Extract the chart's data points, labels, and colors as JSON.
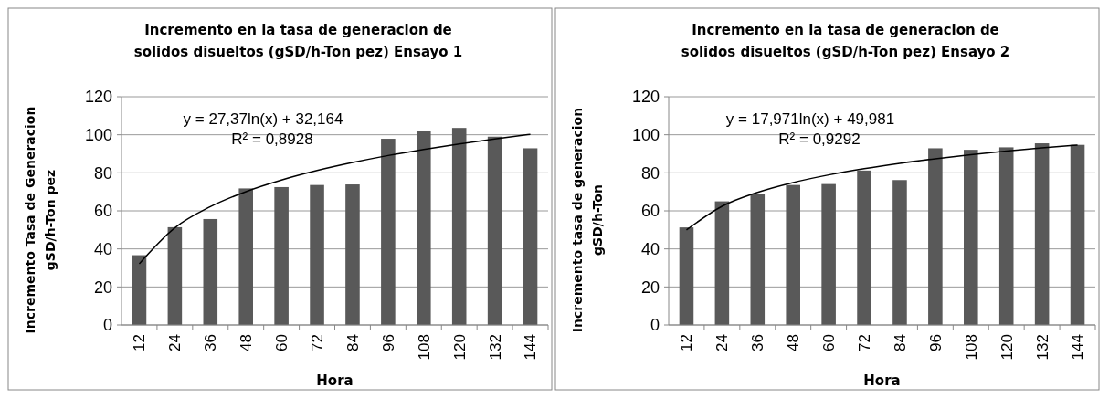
{
  "chart_data": [
    {
      "type": "bar",
      "title": "Incremento en la tasa de generacion de solidos disueltos (gSD/h-Ton pez) Ensayo 1",
      "xlabel": "Hora",
      "ylabel": "Incremento Tasa de Generacion gSD/h-Ton pez",
      "categories": [
        "12",
        "24",
        "36",
        "48",
        "60",
        "72",
        "84",
        "96",
        "108",
        "120",
        "132",
        "144"
      ],
      "ylim": [
        0,
        120
      ],
      "yticks": [
        0,
        20,
        40,
        60,
        80,
        100,
        120
      ],
      "grid": "y",
      "series": [
        {
          "color": "#595959",
          "values": [
            36.7,
            51.4,
            55.7,
            71.8,
            72.5,
            73.6,
            73.9,
            97.9,
            102,
            103.6,
            99,
            92.9
          ]
        },
        {
          "type": "line",
          "color": "#000000",
          "values": [
            32.2,
            51.1,
            62.2,
            70.1,
            76.2,
            81.2,
            85.4,
            89.1,
            92.3,
            95.2,
            97.8,
            100.2
          ]
        }
      ],
      "annotations": [
        "y = 27,37ln(x) + 32,164",
        "R² = 0,8928"
      ]
    },
    {
      "type": "bar",
      "title": "Incremento en la tasa de generacion de solidos disueltos (gSD/h-Ton pez) Ensayo 2",
      "xlabel": "Hora",
      "ylabel": "Incremento tasa de generacion gSD/h-Ton",
      "categories": [
        "12",
        "24",
        "36",
        "48",
        "60",
        "72",
        "84",
        "96",
        "108",
        "120",
        "132",
        "144"
      ],
      "ylim": [
        0,
        120
      ],
      "yticks": [
        0,
        20,
        40,
        60,
        80,
        100,
        120
      ],
      "grid": "y",
      "series": [
        {
          "color": "#595959",
          "values": [
            51.3,
            65,
            68.9,
            73.6,
            74.1,
            81.2,
            76.2,
            92.9,
            92.1,
            93.4,
            95.5,
            94.7
          ]
        },
        {
          "type": "line",
          "color": "#000000",
          "values": [
            50,
            62.4,
            69.7,
            74.9,
            78.9,
            82.2,
            85,
            87.4,
            89.5,
            91.4,
            93.1,
            94.6
          ]
        }
      ],
      "annotations": [
        "y = 17,971ln(x) + 49,981",
        "R² = 0,9292"
      ]
    }
  ]
}
